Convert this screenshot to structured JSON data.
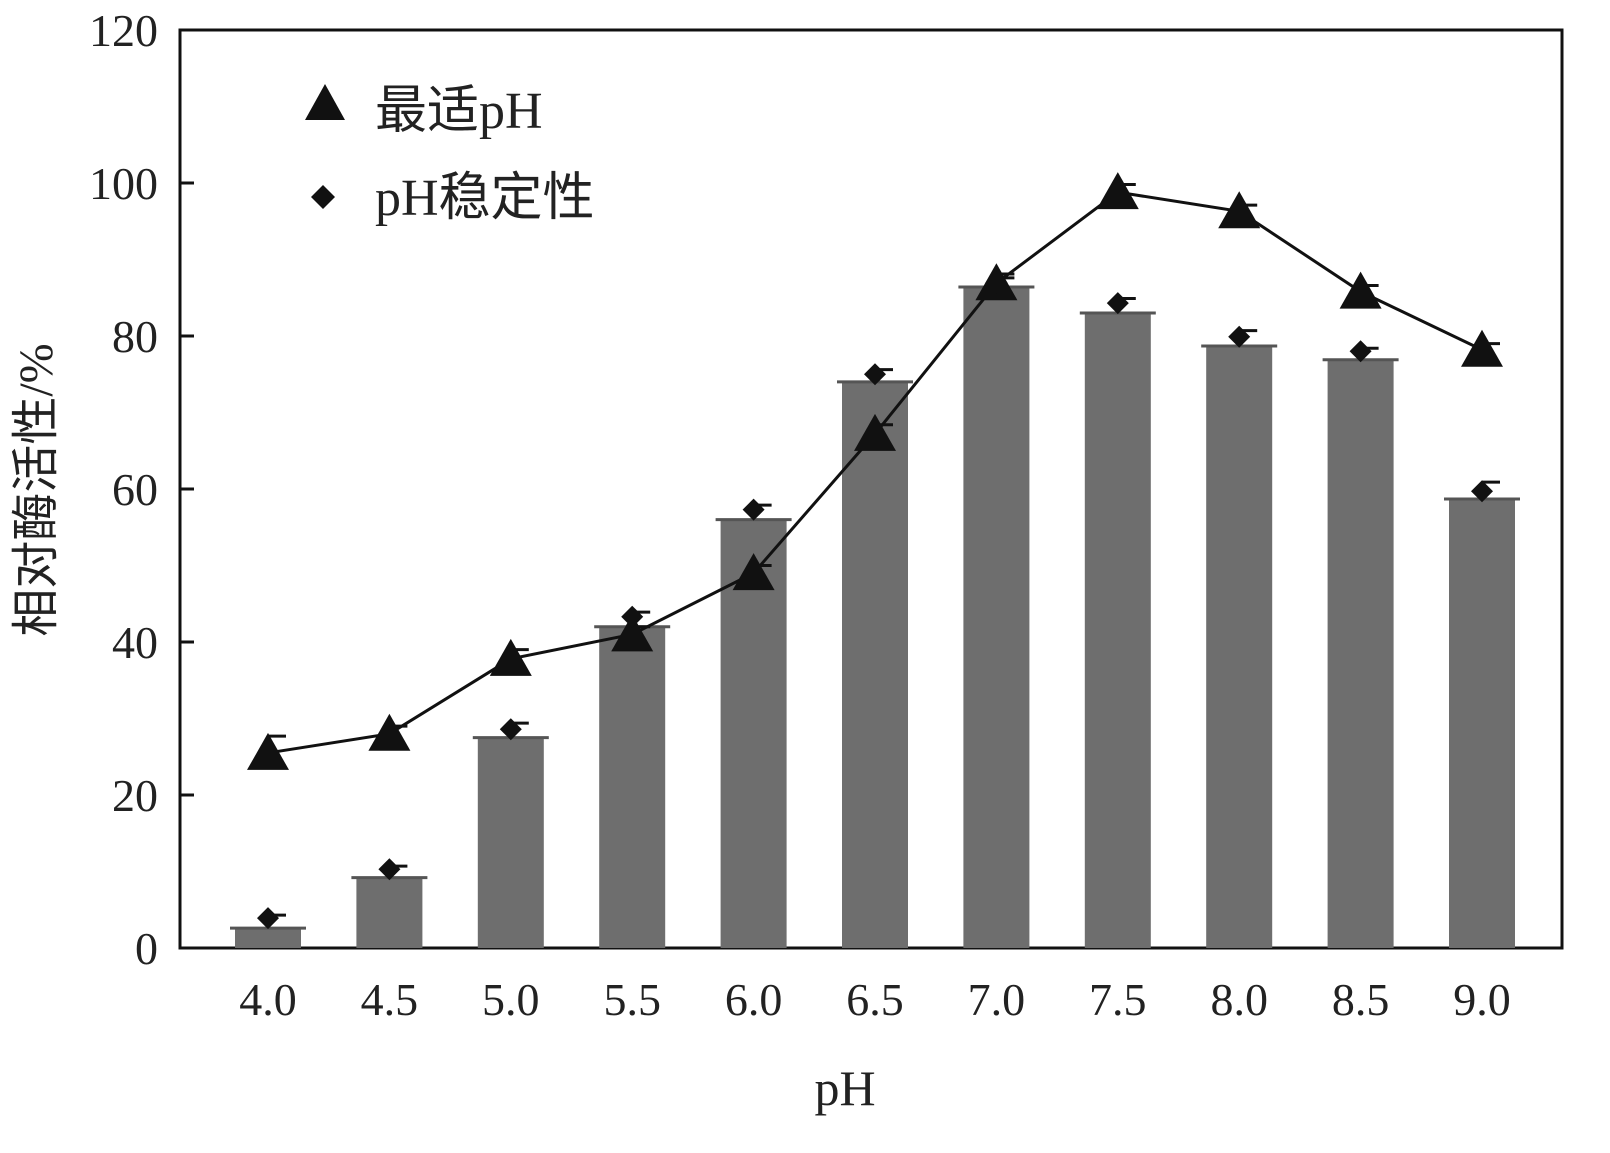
{
  "chart_data": {
    "type": "bar+line",
    "title": "",
    "xlabel": "pH",
    "ylabel": "相对酶活性/%",
    "ylim": [
      0,
      120
    ],
    "yticks": [
      0,
      20,
      40,
      60,
      80,
      100,
      120
    ],
    "categories": [
      "4.0",
      "4.5",
      "5.0",
      "5.5",
      "6.0",
      "6.5",
      "7.0",
      "7.5",
      "8.0",
      "8.5",
      "9.0"
    ],
    "grid": false,
    "legend_position": "top-left",
    "bars": {
      "values": [
        2.6,
        9.2,
        27.5,
        42,
        56,
        74,
        86.4,
        83,
        78.7,
        76.9,
        58.7
      ],
      "color": "#6e6e6e"
    },
    "series": [
      {
        "name": "最适pH",
        "marker": "triangle",
        "line": true,
        "values": [
          25.5,
          28,
          37.8,
          41,
          49,
          67.2,
          86.9,
          98.8,
          96.3,
          85.8,
          78.2
        ],
        "errors": [
          2.2,
          1.0,
          1.2,
          1.0,
          1.0,
          1.2,
          1.2,
          1.0,
          0.8,
          0.8,
          0.8
        ]
      },
      {
        "name": "pH稳定性",
        "marker": "diamond",
        "line": false,
        "values": [
          3.9,
          10.3,
          28.6,
          43.3,
          57.3,
          75,
          87,
          84.3,
          79.9,
          78,
          59.7
        ],
        "errors": [
          0.4,
          0.4,
          0.8,
          0.6,
          0.6,
          0.6,
          0.6,
          0.6,
          0.8,
          0.4,
          1.2
        ]
      }
    ],
    "colors": {
      "bar": "#6e6e6e",
      "marker": "#111111",
      "axis": "#111111"
    }
  }
}
